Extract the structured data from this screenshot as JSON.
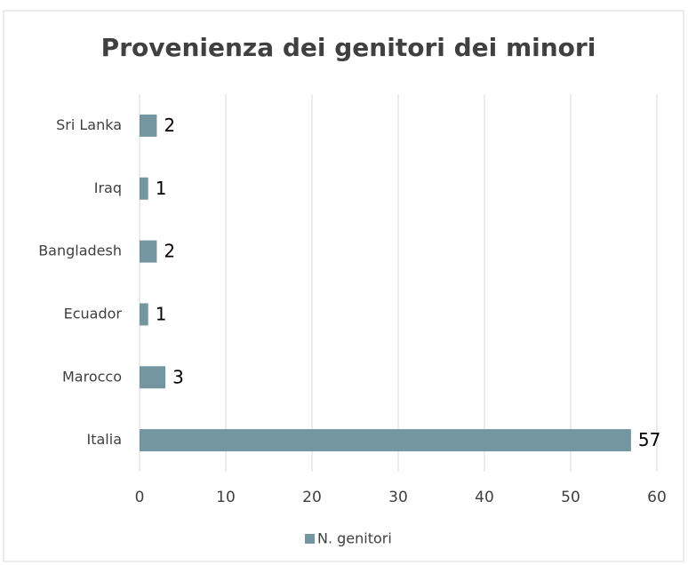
{
  "chart_data": {
    "type": "bar",
    "orientation": "horizontal",
    "title": "Provenienza dei genitori dei minori",
    "categories": [
      "Italia",
      "Marocco",
      "Ecuador",
      "Bangladesh",
      "Iraq",
      "Sri Lanka"
    ],
    "series": [
      {
        "name": "N. genitori",
        "color": "#7396a0",
        "values": [
          57,
          3,
          1,
          2,
          1,
          2
        ]
      }
    ],
    "xlim": [
      0,
      60
    ],
    "xticks": [
      0,
      10,
      20,
      30,
      40,
      50,
      60
    ],
    "grid": true,
    "legend": "bottom"
  }
}
